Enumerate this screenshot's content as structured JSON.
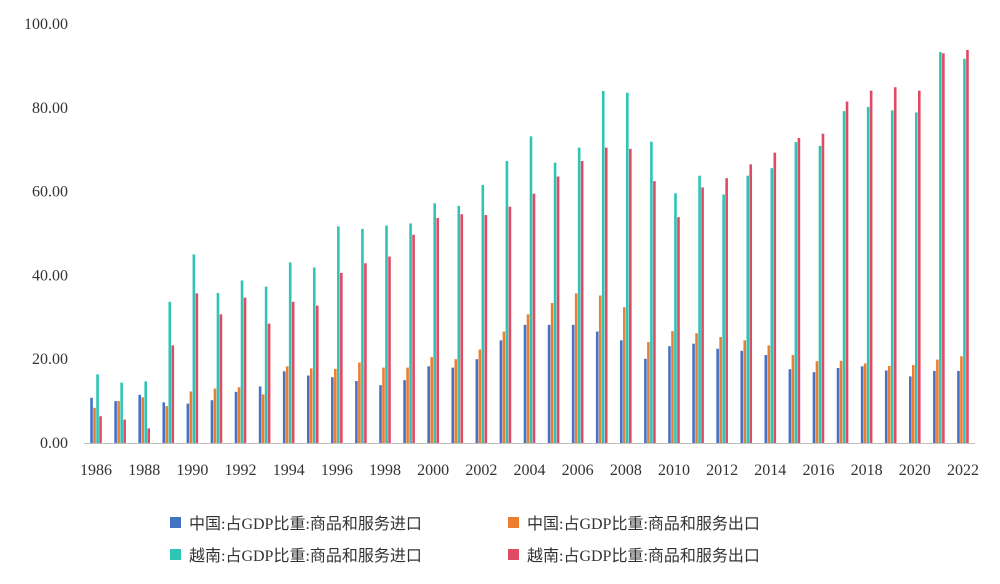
{
  "chart_data": {
    "type": "bar",
    "ylim": [
      0,
      100
    ],
    "yticks": [
      "0.00",
      "20.00",
      "40.00",
      "60.00",
      "80.00",
      "100.00"
    ],
    "categories": [
      1986,
      1987,
      1988,
      1989,
      1990,
      1991,
      1992,
      1993,
      1994,
      1995,
      1996,
      1997,
      1998,
      1999,
      2000,
      2001,
      2002,
      2003,
      2004,
      2005,
      2006,
      2007,
      2008,
      2009,
      2010,
      2011,
      2012,
      2013,
      2014,
      2015,
      2016,
      2017,
      2018,
      2019,
      2020,
      2021,
      2022
    ],
    "xtick_labels": [
      "1986",
      "1988",
      "1990",
      "1992",
      "1994",
      "1996",
      "1998",
      "2000",
      "2002",
      "2004",
      "2006",
      "2008",
      "2010",
      "2012",
      "2014",
      "2016",
      "2018",
      "2020",
      "2022"
    ],
    "series": [
      {
        "name": "中国:占GDP比重:商品和服务进口",
        "color": "#4472C4",
        "values": [
          10.8,
          10.0,
          11.5,
          9.7,
          9.4,
          10.2,
          12.2,
          13.5,
          17.1,
          16.1,
          15.7,
          14.8,
          13.8,
          15.0,
          18.3,
          18.0,
          20.0,
          24.5,
          28.2,
          28.2,
          28.2,
          26.6,
          24.5,
          20.1,
          23.1,
          23.7,
          22.5,
          22.0,
          21.0,
          17.6,
          16.9,
          17.9,
          18.3,
          17.3,
          15.9,
          17.2,
          17.2
        ]
      },
      {
        "name": "中国:占GDP比重:商品和服务出口",
        "color": "#ED7D31",
        "values": [
          8.4,
          10.0,
          10.9,
          8.8,
          12.3,
          13.0,
          13.3,
          11.6,
          18.3,
          17.8,
          17.7,
          19.2,
          18.0,
          18.0,
          20.5,
          20.0,
          22.3,
          26.6,
          30.7,
          33.4,
          35.7,
          35.2,
          32.4,
          24.1,
          26.7,
          26.2,
          25.3,
          24.5,
          23.3,
          21.0,
          19.5,
          19.6,
          19.0,
          18.4,
          18.6,
          19.9,
          20.7
        ]
      },
      {
        "name": "越南:占GDP比重:商品和服务进口",
        "color": "#2EC4B6",
        "values": [
          16.4,
          14.4,
          14.7,
          33.7,
          45.0,
          35.8,
          38.8,
          37.3,
          43.1,
          41.9,
          51.7,
          51.1,
          51.9,
          52.4,
          57.2,
          56.6,
          61.6,
          67.3,
          73.2,
          66.9,
          70.5,
          84.0,
          83.6,
          71.9,
          59.6,
          63.8,
          59.3,
          63.8,
          65.6,
          71.8,
          70.9,
          79.2,
          80.2,
          79.4,
          78.9,
          93.3,
          91.7
        ]
      },
      {
        "name": "越南:占GDP比重:商品和服务出口",
        "color": "#E04A63",
        "values": [
          6.4,
          5.6,
          3.5,
          23.3,
          35.7,
          30.7,
          34.7,
          28.5,
          33.7,
          32.8,
          40.6,
          42.9,
          44.5,
          49.7,
          53.7,
          54.6,
          54.4,
          56.4,
          59.5,
          63.6,
          67.3,
          70.5,
          70.2,
          62.5,
          53.9,
          61.0,
          63.2,
          66.5,
          69.3,
          72.8,
          73.8,
          81.5,
          84.1,
          84.9,
          84.1,
          93.0,
          93.8
        ]
      }
    ]
  }
}
